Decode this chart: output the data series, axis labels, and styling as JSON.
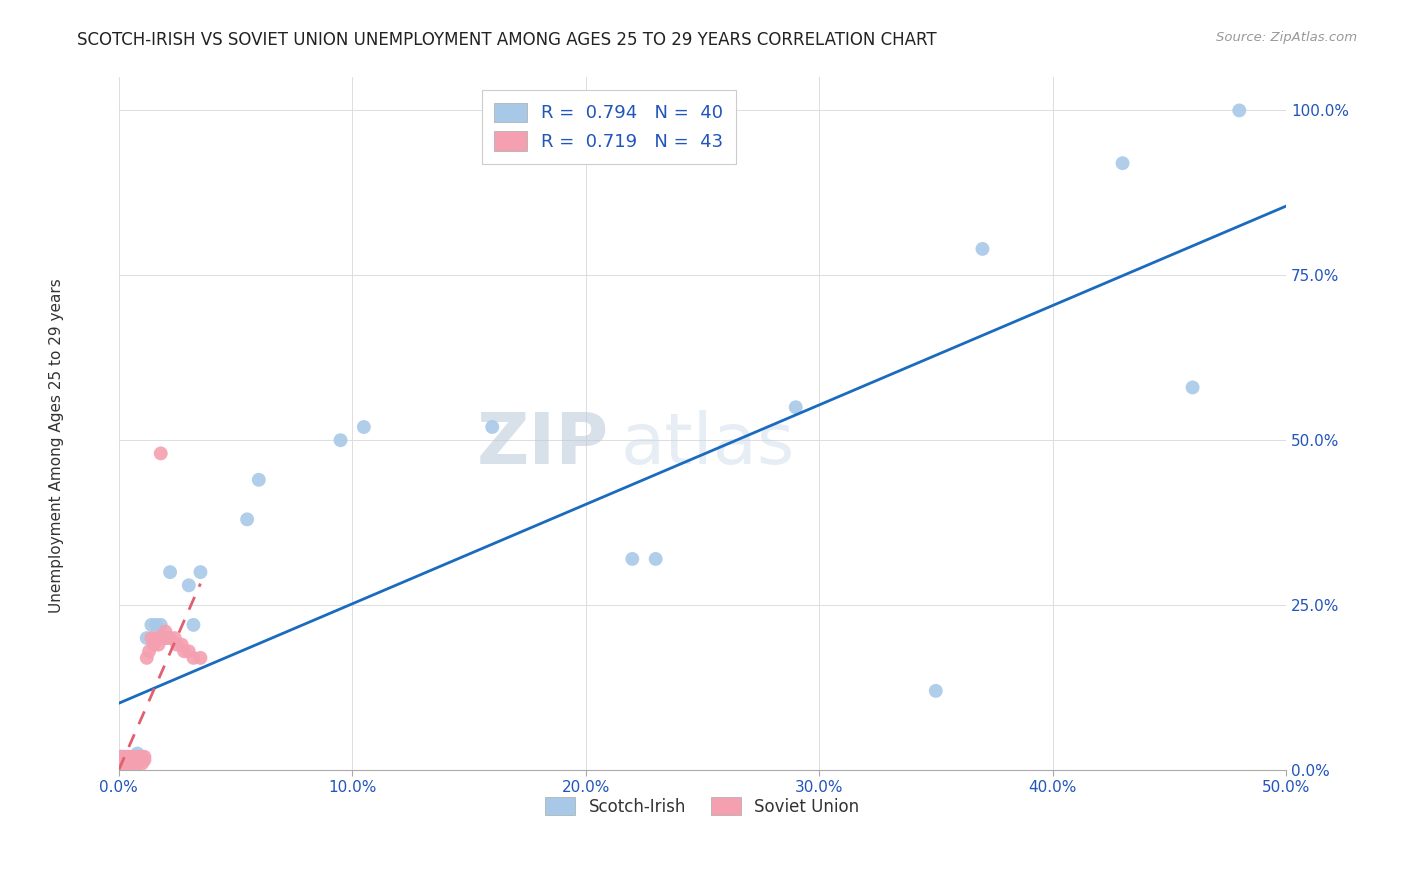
{
  "title": "SCOTCH-IRISH VS SOVIET UNION UNEMPLOYMENT AMONG AGES 25 TO 29 YEARS CORRELATION CHART",
  "source": "Source: ZipAtlas.com",
  "ylabel": "Unemployment Among Ages 25 to 29 years",
  "xlim": [
    0,
    0.5
  ],
  "ylim": [
    0,
    1.05
  ],
  "xticks": [
    0.0,
    0.1,
    0.2,
    0.3,
    0.4,
    0.5
  ],
  "yticks": [
    0.0,
    0.25,
    0.5,
    0.75,
    1.0
  ],
  "scotch_irish_color": "#a8c8e8",
  "soviet_union_color": "#f4a0b0",
  "scotch_irish_line_color": "#1a6bbf",
  "soviet_union_line_color": "#e06070",
  "watermark_zip": "ZIP",
  "watermark_atlas": "atlas",
  "scotch_irish_x": [
    0.001,
    0.001,
    0.001,
    0.001,
    0.002,
    0.002,
    0.002,
    0.003,
    0.003,
    0.003,
    0.004,
    0.004,
    0.005,
    0.005,
    0.006,
    0.007,
    0.008,
    0.009,
    0.012,
    0.014,
    0.016,
    0.018,
    0.02,
    0.022,
    0.03,
    0.032,
    0.035,
    0.055,
    0.06,
    0.095,
    0.105,
    0.16,
    0.22,
    0.23,
    0.29,
    0.35,
    0.37,
    0.43,
    0.46,
    0.48
  ],
  "scotch_irish_y": [
    0.01,
    0.01,
    0.02,
    0.02,
    0.01,
    0.015,
    0.02,
    0.01,
    0.015,
    0.02,
    0.02,
    0.02,
    0.015,
    0.02,
    0.02,
    0.02,
    0.025,
    0.02,
    0.2,
    0.22,
    0.22,
    0.22,
    0.2,
    0.3,
    0.28,
    0.22,
    0.3,
    0.38,
    0.44,
    0.5,
    0.52,
    0.52,
    0.32,
    0.32,
    0.55,
    0.12,
    0.79,
    0.92,
    0.58,
    1.0
  ],
  "soviet_union_x": [
    0.001,
    0.001,
    0.001,
    0.001,
    0.001,
    0.002,
    0.002,
    0.002,
    0.003,
    0.003,
    0.004,
    0.004,
    0.005,
    0.005,
    0.006,
    0.006,
    0.007,
    0.008,
    0.008,
    0.009,
    0.01,
    0.01,
    0.011,
    0.011,
    0.012,
    0.013,
    0.014,
    0.015,
    0.016,
    0.017,
    0.017,
    0.018,
    0.019,
    0.02,
    0.021,
    0.022,
    0.024,
    0.025,
    0.027,
    0.028,
    0.03,
    0.032,
    0.035
  ],
  "soviet_union_y": [
    0.01,
    0.01,
    0.01,
    0.02,
    0.02,
    0.01,
    0.015,
    0.02,
    0.01,
    0.015,
    0.01,
    0.02,
    0.01,
    0.015,
    0.01,
    0.02,
    0.015,
    0.01,
    0.02,
    0.015,
    0.01,
    0.02,
    0.015,
    0.02,
    0.17,
    0.18,
    0.2,
    0.19,
    0.2,
    0.19,
    0.2,
    0.48,
    0.2,
    0.21,
    0.2,
    0.2,
    0.2,
    0.19,
    0.19,
    0.18,
    0.18,
    0.17,
    0.17
  ]
}
